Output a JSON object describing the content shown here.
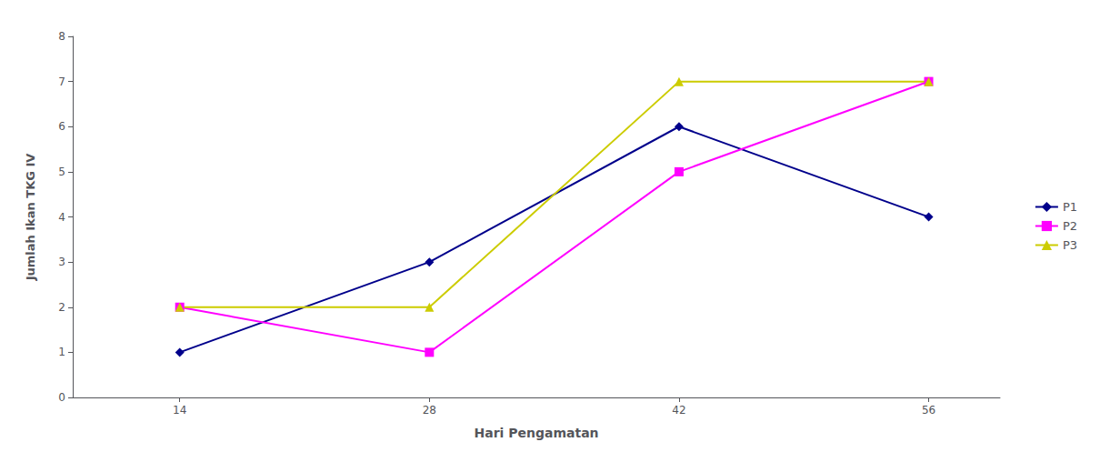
{
  "chart_data": {
    "type": "line",
    "xlabel": "Hari Pengamatan",
    "ylabel": "Jumlah Ikan TKG IV",
    "x": [
      14,
      28,
      42,
      56
    ],
    "series": [
      {
        "name": "P1",
        "color": "#00008B",
        "marker": "diamond",
        "values": [
          1,
          3,
          6,
          4
        ]
      },
      {
        "name": "P2",
        "color": "#FF00FF",
        "marker": "square",
        "values": [
          2,
          1,
          5,
          7
        ]
      },
      {
        "name": "P3",
        "color": "#CCCC00",
        "marker": "triangle",
        "values": [
          2,
          2,
          7,
          7
        ]
      }
    ],
    "xlim": [
      8,
      60
    ],
    "xticks": [
      14,
      28,
      42,
      56
    ],
    "ylim": [
      0,
      8
    ],
    "yticks": [
      0,
      1,
      2,
      3,
      4,
      5,
      6,
      7,
      8
    ],
    "grid": false,
    "legend": "right"
  }
}
